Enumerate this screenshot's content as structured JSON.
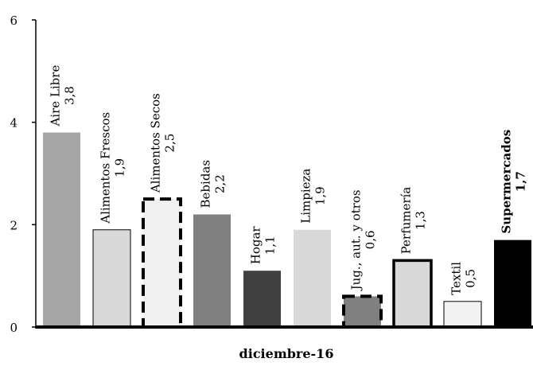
{
  "chart_data": {
    "type": "bar",
    "title": "",
    "xlabel": "diciembre-16",
    "ylabel": "",
    "ylim": [
      0,
      6
    ],
    "yticks": [
      0,
      2,
      4,
      6
    ],
    "ytick_labels": [
      "0",
      "2",
      "4",
      "6"
    ],
    "grid": false,
    "categories": [
      "Aire Libre",
      "Alimentos Frescos",
      "Alimentos Secos",
      "Bebidas",
      "Hogar",
      "Limpieza",
      "Jug., aut. y otros",
      "Perfumería",
      "Textil",
      "Supermercados"
    ],
    "values": [
      3.8,
      1.9,
      2.5,
      2.2,
      1.1,
      1.9,
      0.6,
      1.3,
      0.5,
      1.7
    ],
    "value_labels": [
      "3,8",
      "1,9",
      "2,5",
      "2,2",
      "1,1",
      "1,9",
      "0,6",
      "1,3",
      "0,5",
      "1,7"
    ],
    "bars": [
      {
        "fill": "#a6a6a6",
        "stroke": "none"
      },
      {
        "fill": "#d9d9d9",
        "stroke": "#000000",
        "stroke_style": "thin"
      },
      {
        "fill": "#f0f0f0",
        "stroke": "#000000",
        "stroke_style": "dashed"
      },
      {
        "fill": "#808080",
        "stroke": "none"
      },
      {
        "fill": "#404040",
        "stroke": "none"
      },
      {
        "fill": "#d9d9d9",
        "stroke": "none"
      },
      {
        "fill": "#808080",
        "stroke": "#000000",
        "stroke_style": "dashed"
      },
      {
        "fill": "#d9d9d9",
        "stroke": "#000000",
        "stroke_style": "thick"
      },
      {
        "fill": "#f2f2f2",
        "stroke": "#000000",
        "stroke_style": "thin"
      },
      {
        "fill": "#000000",
        "stroke": "none"
      }
    ],
    "bold_categories": [
      "Supermercados"
    ]
  }
}
